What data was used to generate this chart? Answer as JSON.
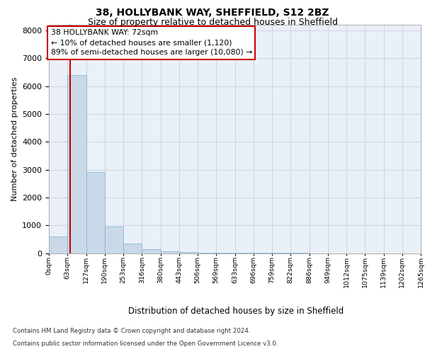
{
  "title1": "38, HOLLYBANK WAY, SHEFFIELD, S12 2BZ",
  "title2": "Size of property relative to detached houses in Sheffield",
  "xlabel": "Distribution of detached houses by size in Sheffield",
  "ylabel": "Number of detached properties",
  "footer1": "Contains HM Land Registry data © Crown copyright and database right 2024.",
  "footer2": "Contains public sector information licensed under the Open Government Licence v3.0.",
  "bar_values": [
    600,
    6400,
    2900,
    950,
    350,
    140,
    75,
    30,
    10,
    5,
    3,
    2,
    1,
    1,
    0,
    0,
    0,
    0,
    0,
    0
  ],
  "bar_color": "#c9d9e8",
  "bar_edge_color": "#7bafd4",
  "x_tick_labels": [
    "0sqm",
    "63sqm",
    "127sqm",
    "190sqm",
    "253sqm",
    "316sqm",
    "380sqm",
    "443sqm",
    "506sqm",
    "569sqm",
    "633sqm",
    "696sqm",
    "759sqm",
    "822sqm",
    "886sqm",
    "949sqm",
    "1012sqm",
    "1075sqm",
    "1139sqm",
    "1202sqm",
    "1265sqm"
  ],
  "property_size": 72,
  "property_bin_edge": 63,
  "bin_width": 63,
  "red_line_color": "#cc0000",
  "annotation_line1": "38 HOLLYBANK WAY: 72sqm",
  "annotation_line2": "← 10% of detached houses are smaller (1,120)",
  "annotation_line3": "89% of semi-detached houses are larger (10,080) →",
  "annotation_box_color": "#ffffff",
  "annotation_box_edge": "#cc0000",
  "ylim": [
    0,
    8200
  ],
  "yticks": [
    0,
    1000,
    2000,
    3000,
    4000,
    5000,
    6000,
    7000,
    8000
  ],
  "grid_color": "#c0c8d8",
  "axes_background": "#eaf0f8"
}
